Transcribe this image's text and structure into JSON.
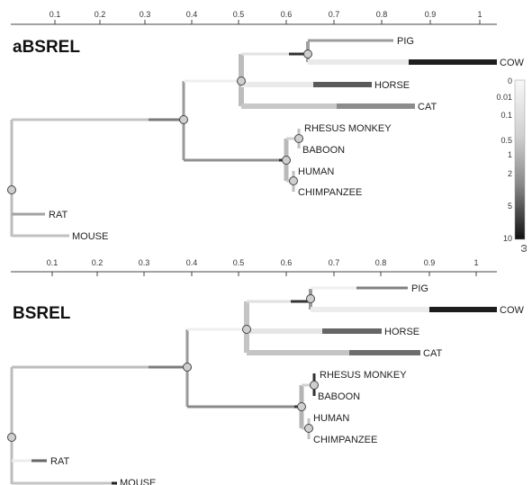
{
  "scale_ticks": [
    "0.1",
    "0.2",
    "0.3",
    "0.4",
    "0.5",
    "0.6",
    "0.7",
    "0.8",
    "0.9",
    "1"
  ],
  "legend": {
    "title": "ω",
    "ticks": [
      "0",
      "0.01",
      "0.1",
      "0.5",
      "1",
      "2",
      "5",
      "10"
    ]
  },
  "panels": [
    {
      "title": "aBSREL",
      "leaves": [
        "PIG",
        "COW",
        "HORSE",
        "CAT",
        "RHESUS MONKEY",
        "BABOON",
        "HUMAN",
        "CHIMPANZEE",
        "RAT",
        "MOUSE"
      ]
    },
    {
      "title": "BSREL",
      "leaves": [
        "PIG",
        "COW",
        "HORSE",
        "CAT",
        "RHESUS MONKEY",
        "BABOON",
        "HUMAN",
        "CHIMPANZEE",
        "RAT",
        "MOUSE"
      ]
    }
  ]
}
